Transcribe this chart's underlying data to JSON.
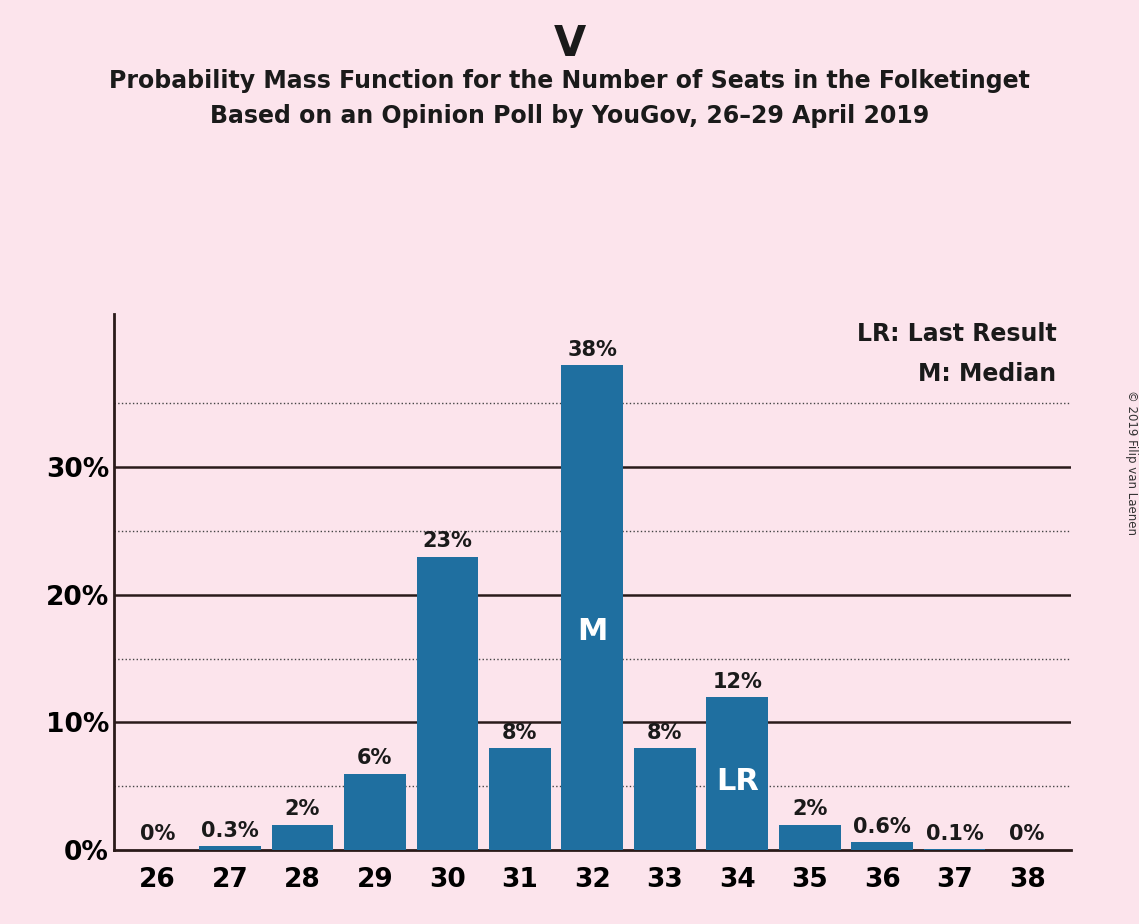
{
  "title_party": "V",
  "title_line1": "Probability Mass Function for the Number of Seats in the Folketinget",
  "title_line2": "Based on an Opinion Poll by YouGov, 26–29 April 2019",
  "copyright_text": "© 2019 Filip van Laenen",
  "legend_lr": "LR: Last Result",
  "legend_m": "M: Median",
  "categories": [
    26,
    27,
    28,
    29,
    30,
    31,
    32,
    33,
    34,
    35,
    36,
    37,
    38
  ],
  "values": [
    0.0,
    0.3,
    2.0,
    6.0,
    23.0,
    8.0,
    38.0,
    8.0,
    12.0,
    2.0,
    0.6,
    0.1,
    0.0
  ],
  "bar_labels": [
    "0%",
    "0.3%",
    "2%",
    "6%",
    "23%",
    "8%",
    "38%",
    "8%",
    "12%",
    "2%",
    "0.6%",
    "0.1%",
    "0%"
  ],
  "bar_color": "#1f6fa0",
  "background_color": "#fce4ec",
  "ylim": [
    0,
    42
  ],
  "median_bar": 32,
  "lr_bar": 34,
  "title_fontsize": 30,
  "subtitle_fontsize": 17,
  "bar_label_fontsize": 15,
  "axis_tick_fontsize": 19,
  "legend_fontsize": 17,
  "marker_fontsize": 22,
  "ylabel_fontsize": 22,
  "solid_lines": [
    10,
    20,
    30
  ],
  "dotted_lines": [
    5,
    15,
    25,
    35
  ],
  "ytick_labeled": [
    0,
    10,
    20,
    30
  ],
  "ytick_labeled_strs": [
    "0%",
    "10%",
    "20%",
    "30%"
  ]
}
